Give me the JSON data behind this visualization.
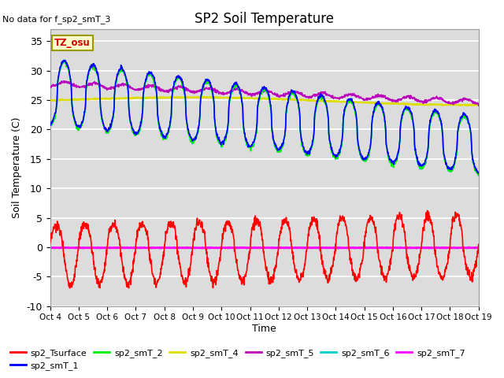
{
  "title": "SP2 Soil Temperature",
  "no_data_label": "No data for f_sp2_smT_3",
  "ylabel": "Soil Temperature (C)",
  "xlabel": "Time",
  "tz_label": "TZ_osu",
  "x_tick_labels": [
    "Oct 4",
    "Oct 5",
    "Oct 6",
    "Oct 7",
    "Oct 8",
    "Oct 9",
    "Oct 10",
    "Oct 11",
    "Oct 12",
    "Oct 13",
    "Oct 14",
    "Oct 15",
    "Oct 16",
    "Oct 17",
    "Oct 18",
    "Oct 19"
  ],
  "ylim": [
    -10,
    37
  ],
  "yticks": [
    -10,
    -5,
    0,
    5,
    10,
    15,
    20,
    25,
    30,
    35
  ],
  "bg_color": "#dcdcdc",
  "series": {
    "sp2_Tsurface": {
      "color": "#ff0000",
      "lw": 1.2
    },
    "sp2_smT_1": {
      "color": "#0000ff",
      "lw": 1.2
    },
    "sp2_smT_2": {
      "color": "#00ee00",
      "lw": 1.2
    },
    "sp2_smT_4": {
      "color": "#dddd00",
      "lw": 1.5
    },
    "sp2_smT_5": {
      "color": "#bb00bb",
      "lw": 1.2
    },
    "sp2_smT_6": {
      "color": "#00cccc",
      "lw": 1.0
    },
    "sp2_smT_7": {
      "color": "#ff00ff",
      "lw": 2.0
    }
  },
  "num_points": 1440
}
